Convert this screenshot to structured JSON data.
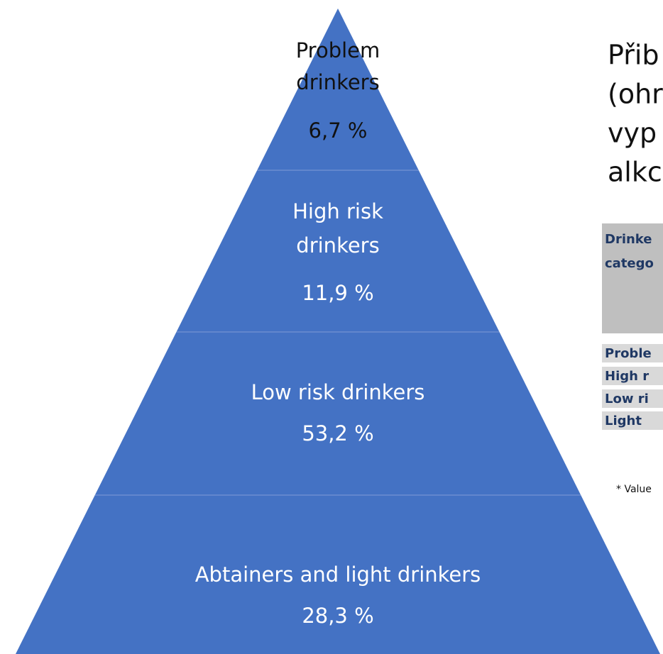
{
  "pyramid": {
    "levels": [
      {
        "label": [
          "Problem",
          "drinkers"
        ],
        "value": "6,7 %"
      },
      {
        "label": [
          "High risk",
          "drinkers"
        ],
        "value": "11,9 %"
      },
      {
        "label": [
          "Low risk drinkers"
        ],
        "value": "53,2 %"
      },
      {
        "label": [
          "Abtainers and light drinkers"
        ],
        "value": "28,3 %"
      }
    ]
  },
  "side": {
    "title": [
      "Přib",
      "(ohr",
      "vyp",
      "alkc"
    ],
    "table": {
      "header": [
        "Drinke",
        "catego"
      ],
      "rows": [
        "Proble",
        "High r",
        "Low ri",
        "Light"
      ]
    },
    "footnote": "* Value"
  }
}
